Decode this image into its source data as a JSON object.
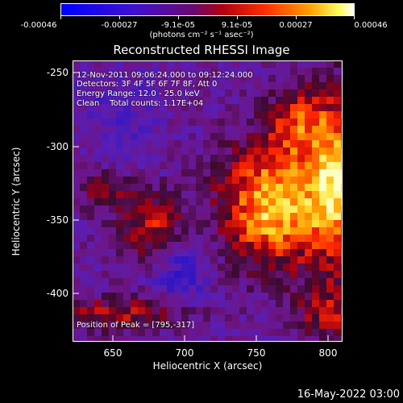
{
  "colorbar": {
    "tick_labels": [
      "-0.00046",
      "-0.00027",
      "-9.1e-05",
      "9.1e-05",
      "0.00027",
      "0.00046"
    ],
    "unit": "(photons cm⁻² s⁻¹ asec⁻²)",
    "colormap": [
      "#0000ff",
      "#7a00b0",
      "#ff0000",
      "#ffff00",
      "#ffffff"
    ]
  },
  "title": "Reconstructed RHESSI Image",
  "info": {
    "time_range": "12-Nov-2011 09:06:24.000 to 09:12:24.000",
    "detectors": "Detectors: 3F 4F 5F 6F 7F 8F, Att 0",
    "energy": "Energy Range: 12.0 - 25.0 keV",
    "clean": "Clean    Total counts: 1.17E+04",
    "peak": "Position of Peak = [795,-317]"
  },
  "axes": {
    "xlabel": "Heliocentric X (arcsec)",
    "ylabel": "Heliocentric Y (arcsec)",
    "xticks": [
      "650",
      "700",
      "750",
      "800"
    ],
    "yticks": [
      "-250",
      "-300",
      "-350",
      "-400"
    ]
  },
  "footer": {
    "timestamp": "16-May-2022 03:00"
  }
}
